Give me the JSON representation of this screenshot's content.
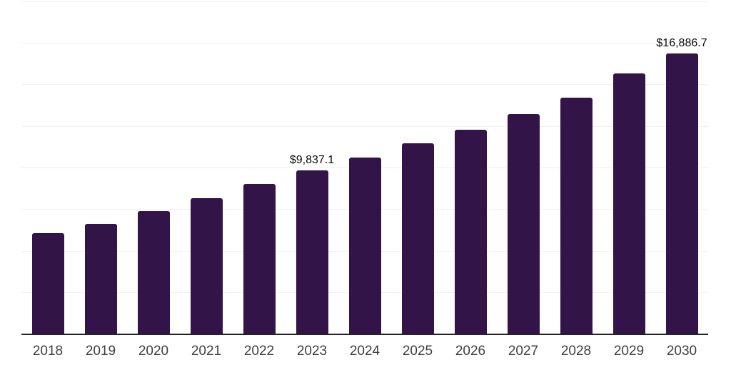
{
  "chart_data": {
    "type": "bar",
    "title": "",
    "xlabel": "",
    "ylabel": "",
    "categories": [
      "2018",
      "2019",
      "2020",
      "2021",
      "2022",
      "2023",
      "2024",
      "2025",
      "2026",
      "2027",
      "2028",
      "2029",
      "2030"
    ],
    "values": [
      6090,
      6650,
      7400,
      8190,
      9020,
      9837.1,
      10610,
      11470,
      12300,
      13220,
      14200,
      15680,
      16886.7
    ],
    "point_labels": [
      "",
      "",
      "",
      "",
      "",
      "$9,837.1",
      "",
      "",
      "",
      "",
      "",
      "",
      "$16,886.7"
    ],
    "ylim": [
      0,
      20000
    ],
    "gridline_step": 2500,
    "grid": true,
    "legend_position": "none",
    "colors": {
      "bar": "#321449",
      "axis_line": "#23222b",
      "gridline": "#f0f0f2",
      "tick_label": "#3f3f3f",
      "data_label": "#0a0a0a",
      "background": "#ffffff"
    }
  }
}
